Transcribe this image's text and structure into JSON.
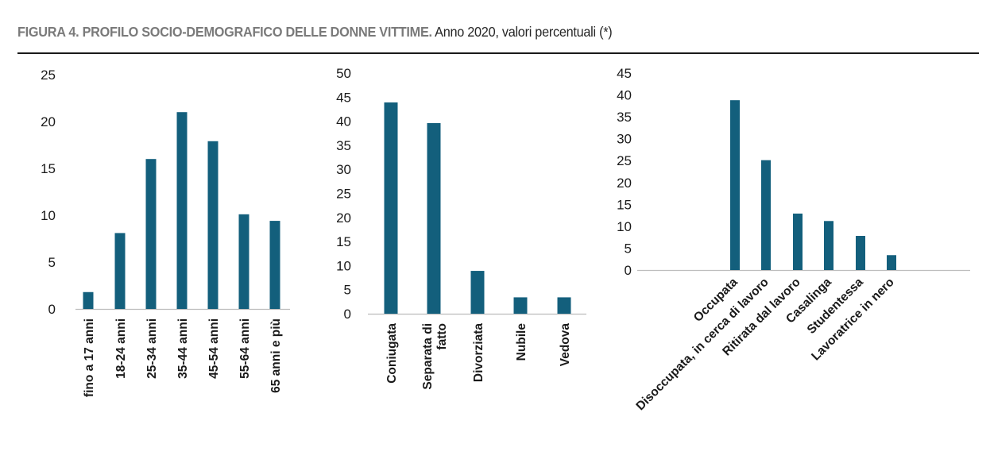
{
  "title": {
    "bold": "FIGURA 4. PROFILO SOCIO-DEMOGRAFICO DELLE DONNE VITTIME.",
    "rest": "Anno 2020, valori percentuali (*)"
  },
  "colors": {
    "bar": "#135f7c",
    "axis": "#bdbdbd",
    "rule": "#1a1a1a"
  },
  "chart_data": [
    {
      "type": "bar",
      "title": "",
      "categories": [
        "fino a 17 anni",
        "18-24 anni",
        "25-34 anni",
        "35-44 anni",
        "45-54 anni",
        "55-64 anni",
        "65 anni e più"
      ],
      "values": [
        1.8,
        8.1,
        16.0,
        21.0,
        17.9,
        10.1,
        9.4
      ],
      "ylim": [
        0,
        25
      ],
      "yticks": [
        0,
        5,
        10,
        15,
        20,
        25
      ],
      "xlabel": "",
      "ylabel": "",
      "grid": false
    },
    {
      "type": "bar",
      "title": "",
      "categories": [
        "Coniugata",
        "Separata di fatto",
        "Divorziata",
        "Nubile",
        "Vedova"
      ],
      "values": [
        43.9,
        39.6,
        8.9,
        3.4,
        3.4
      ],
      "ylim": [
        0,
        50
      ],
      "yticks": [
        0,
        5,
        10,
        15,
        20,
        25,
        30,
        35,
        40,
        45,
        50
      ],
      "xlabel": "",
      "ylabel": "",
      "grid": false
    },
    {
      "type": "bar",
      "title": "",
      "categories": [
        "Occupata",
        "Disoccupata, in cerca di lavoro",
        "Ritirata dal lavoro",
        "Casalinga",
        "Studentessa",
        "Lavoratrice in nero"
      ],
      "values": [
        38.8,
        25.1,
        12.9,
        11.2,
        7.8,
        3.4
      ],
      "ylim": [
        0,
        45
      ],
      "yticks": [
        0,
        5,
        10,
        15,
        20,
        25,
        30,
        35,
        40,
        45
      ],
      "xlabel": "",
      "ylabel": "",
      "grid": false
    }
  ]
}
